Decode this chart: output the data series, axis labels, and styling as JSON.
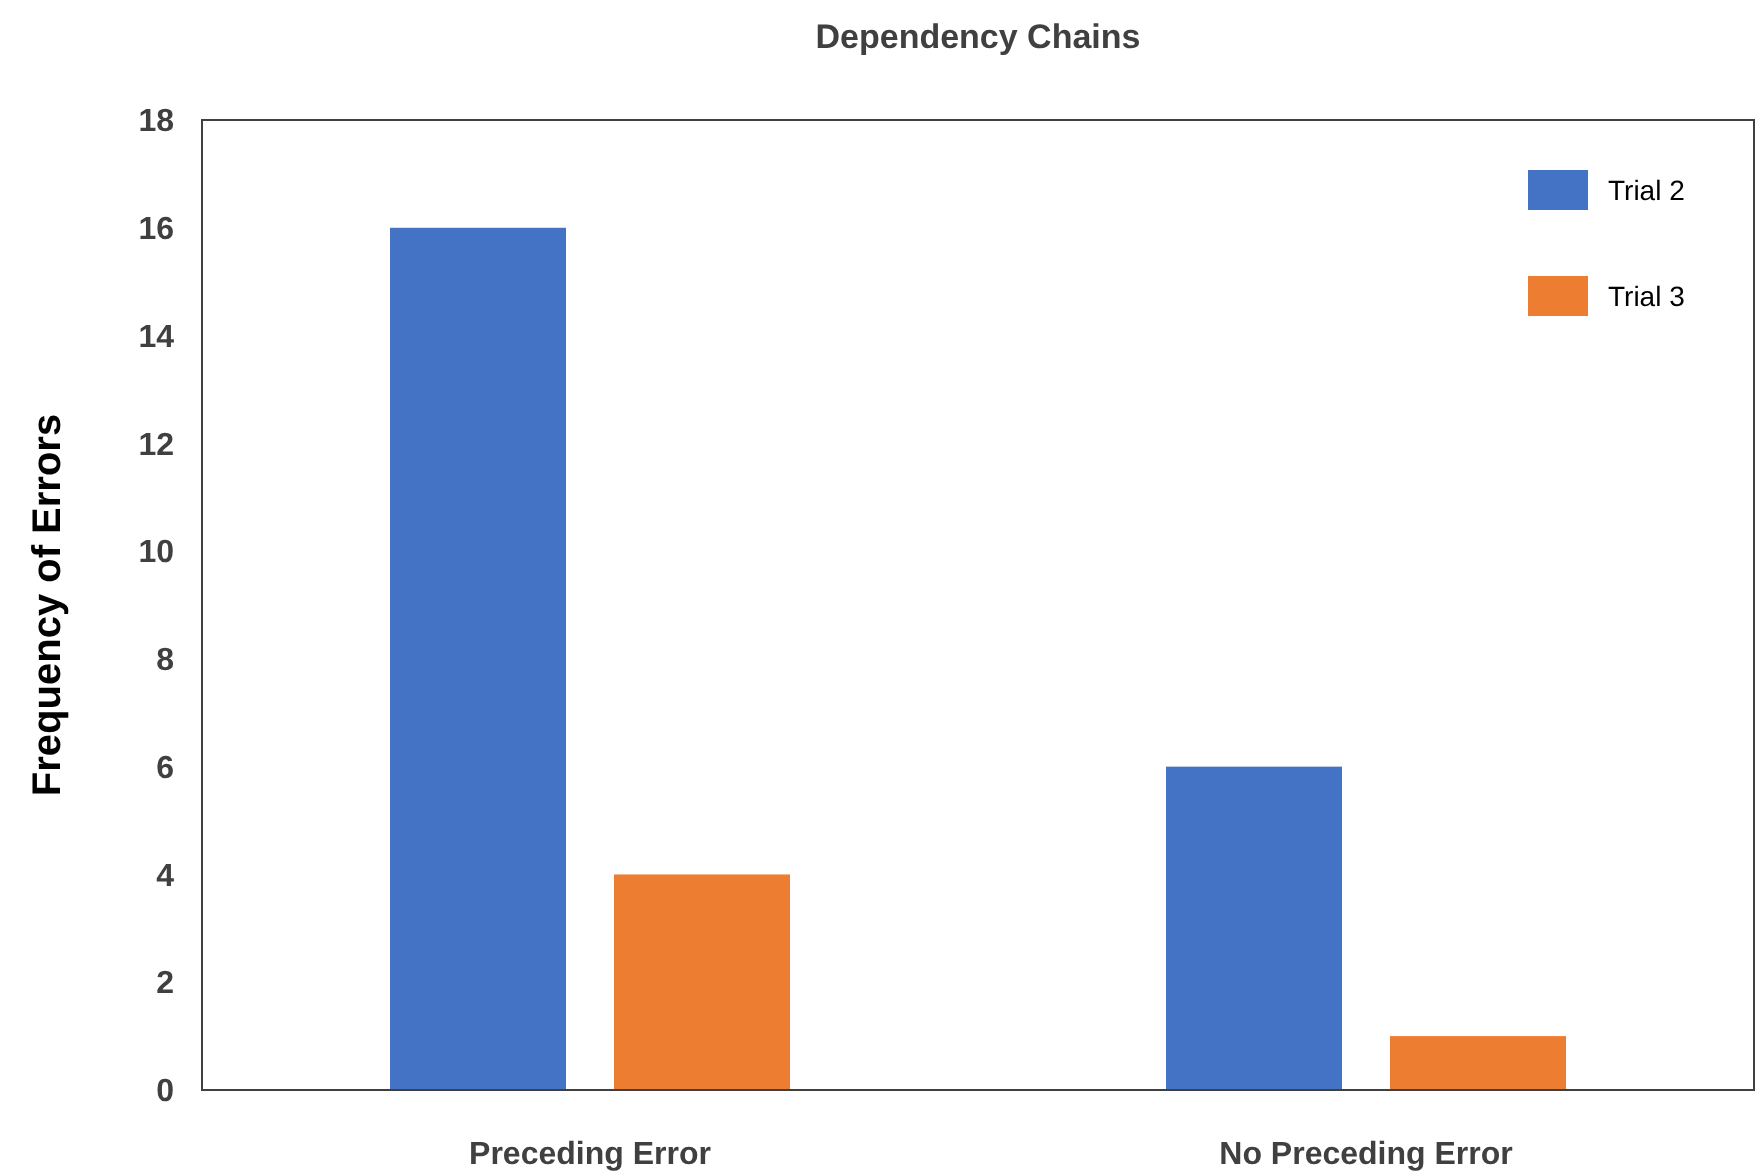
{
  "chart_data": {
    "type": "bar",
    "title": "Dependency Chains",
    "ylabel": "Frequency of Errors",
    "categories": [
      "Preceding Error",
      "No Preceding Error"
    ],
    "series": [
      {
        "name": "Trial 2",
        "color": "#4472c4",
        "values": [
          16,
          6
        ]
      },
      {
        "name": "Trial 3",
        "color": "#ed7d31",
        "values": [
          4,
          1
        ]
      }
    ],
    "ylim": [
      0,
      18
    ],
    "yticks": [
      0,
      2,
      4,
      6,
      8,
      10,
      12,
      14,
      16,
      18
    ],
    "grid": false,
    "legend": "top right"
  }
}
